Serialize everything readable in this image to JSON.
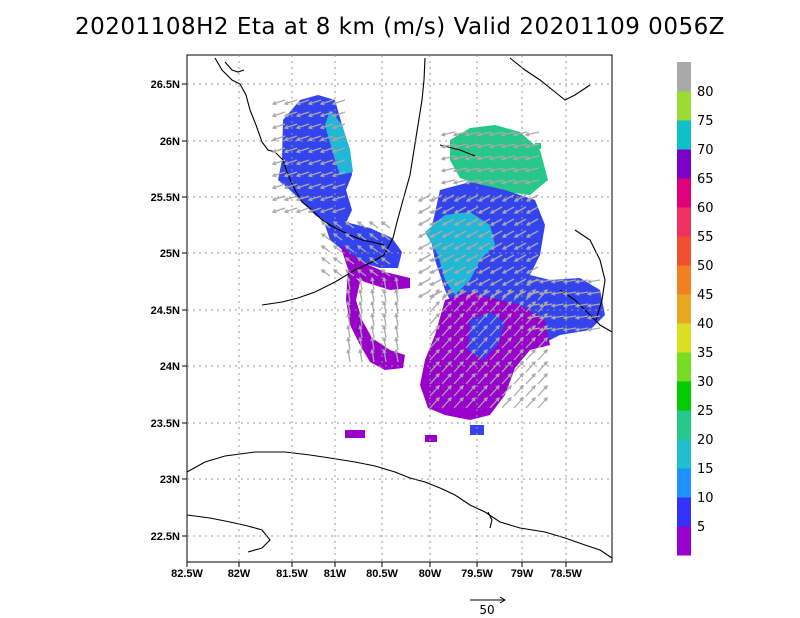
{
  "title": "20201108H2 Eta at 8 km (m/s) Valid 20201109 0056Z",
  "map": {
    "lon_labels": [
      "82.5W",
      "82W",
      "81.5W",
      "81W",
      "80.5W",
      "80W",
      "79.5W",
      "79W",
      "78.5W"
    ],
    "lat_labels": [
      "26.5N",
      "26N",
      "25.5N",
      "25N",
      "24.5N",
      "24N",
      "23.5N",
      "23N",
      "22.5N"
    ]
  },
  "colorbar": {
    "labels": [
      "5",
      "10",
      "15",
      "20",
      "25",
      "30",
      "35",
      "40",
      "45",
      "50",
      "55",
      "60",
      "65",
      "70",
      "75",
      "80"
    ],
    "colors": [
      "#9900cc",
      "#3333ff",
      "#1e90ff",
      "#1fbfd0",
      "#25c888",
      "#00cc00",
      "#77dd22",
      "#dddd22",
      "#e8a820",
      "#f08020",
      "#f05030",
      "#f03060",
      "#e0007a",
      "#7c00c8",
      "#10c0c8",
      "#99dd33",
      "#a8a8a8"
    ]
  },
  "reference_vector": {
    "label": "50"
  },
  "legend_colors": {
    "arrow": "#a9a9a9",
    "coast": "#000000"
  }
}
